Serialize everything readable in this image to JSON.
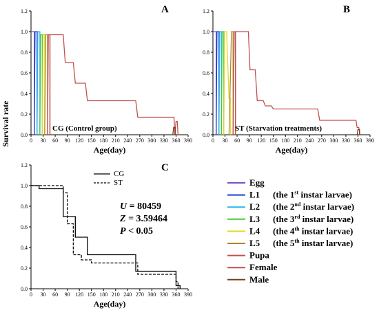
{
  "figure": {
    "shared_ylabel": "Survival rate"
  },
  "chart_data": [
    {
      "panel": "A",
      "type": "line",
      "annotation": "CG (Control group)",
      "xlabel": "Age(day)",
      "xlim": [
        0,
        390
      ],
      "ylim": [
        0,
        1.2
      ],
      "xticks": [
        0,
        30,
        60,
        90,
        120,
        150,
        180,
        210,
        240,
        270,
        300,
        330,
        360,
        390
      ],
      "yticks": [
        0.0,
        0.2,
        0.4,
        0.6,
        0.8,
        1.0,
        1.2
      ],
      "series": [
        {
          "name": "Egg",
          "color": "#7a4dd1",
          "x": [
            0,
            8,
            8
          ],
          "y": [
            1.0,
            1.0,
            0.0
          ]
        },
        {
          "name": "L1",
          "color": "#1a3fd6",
          "x": [
            8,
            10,
            15,
            15
          ],
          "y": [
            0.0,
            1.0,
            1.0,
            0.0
          ]
        },
        {
          "name": "L2",
          "color": "#29b6e8",
          "x": [
            15,
            17,
            22,
            22
          ],
          "y": [
            0.0,
            1.0,
            1.0,
            0.0
          ]
        },
        {
          "name": "L3",
          "color": "#46c93a",
          "x": [
            22,
            24,
            28,
            28
          ],
          "y": [
            0.0,
            0.97,
            0.97,
            0.0
          ]
        },
        {
          "name": "L4",
          "color": "#e3d928",
          "x": [
            28,
            30,
            34,
            34
          ],
          "y": [
            0.0,
            0.97,
            0.97,
            0.0
          ]
        },
        {
          "name": "L5",
          "color": "#a88a2a",
          "x": [
            34,
            36,
            41,
            41
          ],
          "y": [
            0.0,
            0.97,
            0.97,
            0.0
          ]
        },
        {
          "name": "Pupa",
          "color": "#c0504d",
          "x": [
            41,
            43,
            47,
            47
          ],
          "y": [
            0.0,
            0.97,
            0.97,
            0.0
          ]
        },
        {
          "name": "Female",
          "color": "#c0504d",
          "x": [
            47,
            47,
            80,
            85,
            105,
            110,
            135,
            140,
            260,
            265,
            355,
            357,
            360,
            363,
            365
          ],
          "y": [
            0.0,
            0.97,
            0.97,
            0.7,
            0.7,
            0.5,
            0.5,
            0.33,
            0.33,
            0.17,
            0.17,
            0.0,
            0.13,
            0.13,
            0.0
          ]
        },
        {
          "name": "Male",
          "color": "#7b3b1c",
          "x": [
            352,
            354,
            358,
            358
          ],
          "y": [
            0.0,
            0.07,
            0.07,
            0.0
          ]
        }
      ]
    },
    {
      "panel": "B",
      "type": "line",
      "annotation": "ST (Starvation treatments)",
      "xlabel": "Age(day)",
      "xlim": [
        0,
        390
      ],
      "ylim": [
        0,
        1.2
      ],
      "xticks": [
        0,
        30,
        60,
        90,
        120,
        150,
        180,
        210,
        240,
        270,
        300,
        330,
        360,
        390
      ],
      "yticks": [
        0.0,
        0.2,
        0.4,
        0.6,
        0.8,
        1.0,
        1.2
      ],
      "series": [
        {
          "name": "Egg",
          "color": "#7a4dd1",
          "x": [
            0,
            8,
            8
          ],
          "y": [
            1.0,
            1.0,
            0.0
          ]
        },
        {
          "name": "L1",
          "color": "#1a3fd6",
          "x": [
            8,
            10,
            15,
            15
          ],
          "y": [
            0.0,
            1.0,
            1.0,
            0.0
          ]
        },
        {
          "name": "L2",
          "color": "#29b6e8",
          "x": [
            15,
            17,
            21,
            21
          ],
          "y": [
            0.0,
            1.0,
            1.0,
            0.0
          ]
        },
        {
          "name": "L3",
          "color": "#46c93a",
          "x": [
            21,
            23,
            27,
            27
          ],
          "y": [
            0.0,
            1.0,
            1.0,
            0.0
          ]
        },
        {
          "name": "L4",
          "color": "#e3d928",
          "x": [
            27,
            29,
            34,
            40,
            44,
            44
          ],
          "y": [
            0.0,
            1.0,
            1.0,
            0.35,
            0.35,
            0.0
          ]
        },
        {
          "name": "L5",
          "color": "#a88a2a",
          "x": [
            40,
            46,
            50,
            50
          ],
          "y": [
            0.0,
            1.0,
            1.0,
            0.0
          ]
        },
        {
          "name": "Pupa",
          "color": "#c0504d",
          "x": [
            50,
            53,
            56,
            56
          ],
          "y": [
            0.0,
            1.0,
            1.0,
            0.0
          ]
        },
        {
          "name": "Female",
          "color": "#c0504d",
          "x": [
            56,
            56,
            88,
            92,
            105,
            110,
            125,
            130,
            145,
            150,
            260,
            265,
            355,
            358,
            362,
            365
          ],
          "y": [
            0.0,
            1.0,
            1.0,
            0.63,
            0.63,
            0.33,
            0.33,
            0.28,
            0.28,
            0.25,
            0.25,
            0.14,
            0.14,
            0.07,
            0.07,
            0.0
          ]
        },
        {
          "name": "Male",
          "color": "#7b3b1c",
          "x": [
            358,
            360,
            364,
            364
          ],
          "y": [
            0.0,
            0.05,
            0.05,
            0.0
          ]
        }
      ]
    },
    {
      "panel": "C",
      "type": "line",
      "xlabel": "Age(day)",
      "xlim": [
        0,
        390
      ],
      "ylim": [
        0,
        1.2
      ],
      "xticks": [
        0,
        30,
        60,
        90,
        120,
        150,
        180,
        210,
        240,
        270,
        300,
        330,
        360,
        390
      ],
      "yticks": [
        0.0,
        0.2,
        0.4,
        0.6,
        0.8,
        1.0,
        1.2
      ],
      "series": [
        {
          "name": "CG",
          "color": "#000000",
          "dash": "solid",
          "x": [
            0,
            20,
            20,
            80,
            80,
            110,
            110,
            140,
            140,
            260,
            260,
            360,
            360,
            370,
            370
          ],
          "y": [
            1.0,
            1.0,
            0.97,
            0.97,
            0.7,
            0.7,
            0.5,
            0.5,
            0.33,
            0.33,
            0.17,
            0.17,
            0.03,
            0.03,
            0.0
          ]
        },
        {
          "name": "ST",
          "color": "#000000",
          "dash": "dashed",
          "x": [
            0,
            80,
            80,
            90,
            90,
            105,
            105,
            125,
            125,
            150,
            150,
            265,
            265,
            360,
            360,
            365,
            365
          ],
          "y": [
            1.0,
            1.0,
            0.93,
            0.93,
            0.63,
            0.63,
            0.33,
            0.33,
            0.28,
            0.28,
            0.25,
            0.25,
            0.14,
            0.14,
            0.07,
            0.07,
            0.0
          ]
        }
      ],
      "stats": {
        "u_label": "U",
        "u_value": " = 80459",
        "z_label": "Z",
        "z_value": " = 3.59464",
        "p_label": "P",
        "p_value": " < 0.05"
      }
    }
  ],
  "legend": {
    "items": [
      {
        "key": "Egg",
        "text": "Egg",
        "color": "#7a4dd1"
      },
      {
        "key": "L1",
        "text": "L1",
        "desc_pre": "(the 1",
        "sup": "st",
        "desc_post": " instar larvae)",
        "color": "#1a3fd6"
      },
      {
        "key": "L2",
        "text": "L2",
        "desc_pre": "(the 2",
        "sup": "nd",
        "desc_post": " instar larvae)",
        "color": "#29b6e8"
      },
      {
        "key": "L3",
        "text": "L3",
        "desc_pre": "(the 3",
        "sup": "rd",
        "desc_post": " instar larvae)",
        "color": "#46c93a"
      },
      {
        "key": "L4",
        "text": "L4",
        "desc_pre": "(the 4",
        "sup": "th",
        "desc_post": " instar larvae)",
        "color": "#e3d928"
      },
      {
        "key": "L5",
        "text": "L5",
        "desc_pre": "(the 5",
        "sup": "th",
        "desc_post": " instar larvae)",
        "color": "#a88a2a"
      },
      {
        "key": "Pupa",
        "text": "Pupa",
        "color": "#c0504d"
      },
      {
        "key": "Female",
        "text": "Female",
        "color": "#c0504d"
      },
      {
        "key": "Male",
        "text": "Male",
        "color": "#7b3b1c"
      }
    ]
  }
}
